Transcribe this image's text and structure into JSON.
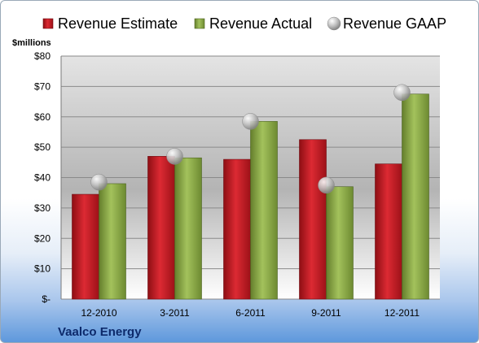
{
  "chart_data": {
    "type": "bar",
    "categories": [
      "12-2010",
      "3-2011",
      "6-2011",
      "9-2011",
      "12-2011"
    ],
    "series": [
      {
        "name": "Revenue Estimate",
        "kind": "bar",
        "color": "#c8202a",
        "values": [
          34.5,
          47,
          46,
          52.5,
          44.5
        ]
      },
      {
        "name": "Revenue Actual",
        "kind": "bar",
        "color": "#8fae4a",
        "values": [
          38,
          46.5,
          58.5,
          37,
          67.5
        ]
      },
      {
        "name": "Revenue GAAP",
        "kind": "marker",
        "color": "#b8b8b8",
        "values": [
          38.5,
          47,
          58.5,
          37.5,
          68
        ]
      }
    ],
    "ylabel": "$millions",
    "ylim": [
      0,
      80
    ],
    "yticks": [
      {
        "value": 0,
        "label": "$-"
      },
      {
        "value": 10,
        "label": "$10"
      },
      {
        "value": 20,
        "label": "$20"
      },
      {
        "value": 30,
        "label": "$30"
      },
      {
        "value": 40,
        "label": "$40"
      },
      {
        "value": 50,
        "label": "$50"
      },
      {
        "value": 60,
        "label": "$60"
      },
      {
        "value": 70,
        "label": "$70"
      },
      {
        "value": 80,
        "label": "$80"
      }
    ],
    "grid": true,
    "legend": "top"
  },
  "company": "Vaalco Energy"
}
